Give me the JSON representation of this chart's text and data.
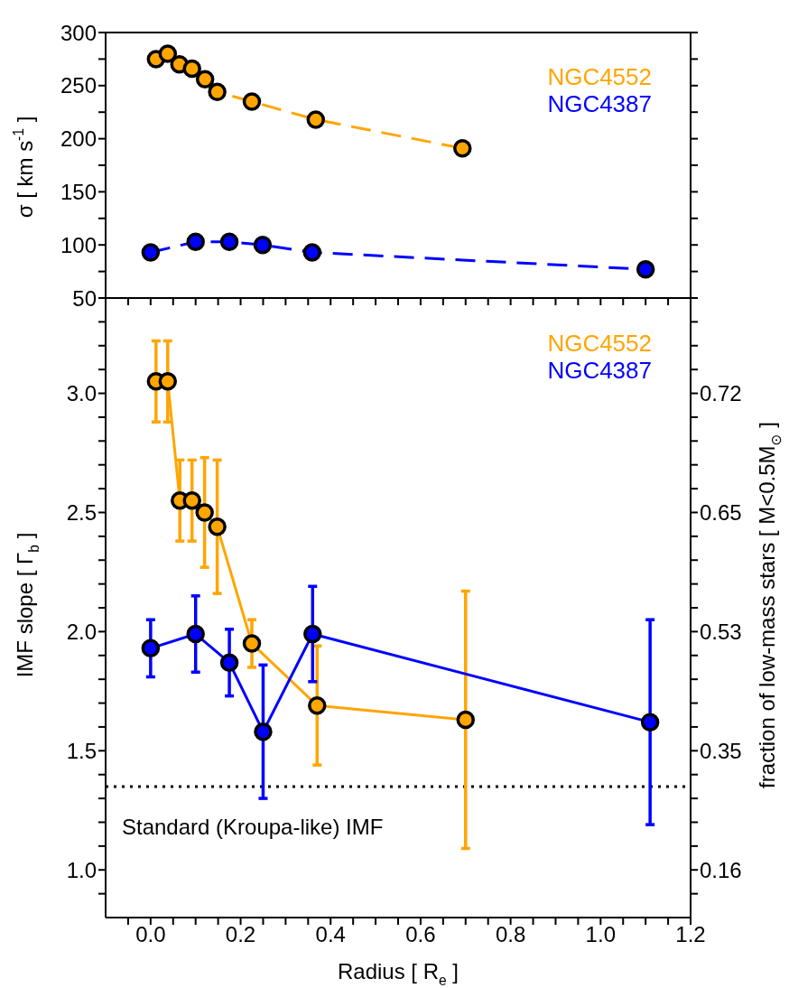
{
  "chart_data": [
    {
      "type": "line",
      "ylabel": "σ [ km s$^{-1}$ ]",
      "xlim": [
        -0.1,
        1.2
      ],
      "xticks": [
        -0.05,
        0,
        0.05,
        0.1,
        0.15,
        0.2,
        0.25,
        0.3,
        0.35,
        0.4,
        0.45,
        0.5,
        0.55,
        0.6,
        0.65,
        0.7,
        0.75,
        0.8,
        0.85,
        0.9,
        0.95,
        1.0,
        1.05,
        1.1,
        1.15,
        1.2
      ],
      "ylim": [
        50,
        300
      ],
      "yticks": [
        50,
        {
          "value": 75,
          "label": null
        },
        100,
        {
          "value": 125,
          "label": null
        },
        150,
        {
          "value": 175,
          "label": null
        },
        200,
        {
          "value": 225,
          "label": null
        },
        250,
        {
          "value": 275,
          "label": null
        },
        300
      ],
      "tick_labels": "y",
      "legend": "top right",
      "marker": "circle",
      "line_style": "dashed",
      "series": [
        {
          "name": "NGC4552",
          "color": "#ffa500",
          "x": [
            0.012,
            0.038,
            0.064,
            0.092,
            0.121,
            0.148,
            0.225,
            0.367,
            0.693
          ],
          "values": [
            275,
            280,
            270,
            266,
            256,
            244,
            235,
            218,
            191
          ]
        },
        {
          "name": "NGC4387",
          "color": "#0000ff",
          "x": [
            0.0,
            0.1,
            0.175,
            0.249,
            0.359,
            1.1
          ],
          "values": [
            93,
            103,
            103,
            100,
            93,
            77
          ]
        }
      ]
    },
    {
      "type": "line",
      "xlabel": "Radius [ R$_{e}$ ]",
      "ylabel": "IMF slope [ Γ$_{b}$ ]",
      "y2label": "fraction of low-mass stars [ M<0.5M$_{⊙}$ ]",
      "xlim": [
        -0.1,
        1.2
      ],
      "xticks": [
        {
          "value": -0.05,
          "label": null
        },
        {
          "value": 0,
          "label": "0.0"
        },
        {
          "value": 0.05,
          "label": null
        },
        {
          "value": 0.1,
          "label": null
        },
        {
          "value": 0.15,
          "label": null
        },
        {
          "value": 0.2,
          "label": "0.2"
        },
        {
          "value": 0.25,
          "label": null
        },
        {
          "value": 0.3,
          "label": null
        },
        {
          "value": 0.35,
          "label": null
        },
        {
          "value": 0.4,
          "label": "0.4"
        },
        {
          "value": 0.45,
          "label": null
        },
        {
          "value": 0.5,
          "label": null
        },
        {
          "value": 0.55,
          "label": null
        },
        {
          "value": 0.6,
          "label": "0.6"
        },
        {
          "value": 0.65,
          "label": null
        },
        {
          "value": 0.7,
          "label": null
        },
        {
          "value": 0.75,
          "label": null
        },
        {
          "value": 0.8,
          "label": "0.8"
        },
        {
          "value": 0.85,
          "label": null
        },
        {
          "value": 0.9,
          "label": null
        },
        {
          "value": 0.95,
          "label": null
        },
        {
          "value": 1.0,
          "label": "1.0"
        },
        {
          "value": 1.05,
          "label": null
        },
        {
          "value": 1.1,
          "label": null
        },
        {
          "value": 1.15,
          "label": null
        },
        {
          "value": 1.2,
          "label": "1.2"
        }
      ],
      "ylim": [
        0.8,
        3.4
      ],
      "yticks": [
        {
          "value": 0.9,
          "label": null
        },
        {
          "value": 1.0,
          "label": "1.0"
        },
        {
          "value": 1.1,
          "label": null
        },
        {
          "value": 1.2,
          "label": null
        },
        {
          "value": 1.3,
          "label": null
        },
        {
          "value": 1.4,
          "label": null
        },
        1.5,
        {
          "value": 1.6,
          "label": null
        },
        {
          "value": 1.7,
          "label": null
        },
        {
          "value": 1.8,
          "label": null
        },
        {
          "value": 1.9,
          "label": null
        },
        {
          "value": 2.0,
          "label": "2.0"
        },
        {
          "value": 2.1,
          "label": null
        },
        {
          "value": 2.2,
          "label": null
        },
        {
          "value": 2.3,
          "label": null
        },
        {
          "value": 2.4,
          "label": null
        },
        2.5,
        {
          "value": 2.6,
          "label": null
        },
        {
          "value": 2.7,
          "label": null
        },
        {
          "value": 2.8,
          "label": null
        },
        {
          "value": 2.9,
          "label": null
        },
        {
          "value": 3.0,
          "label": "3.0"
        },
        {
          "value": 3.1,
          "label": null
        },
        {
          "value": 3.2,
          "label": null
        },
        {
          "value": 3.3,
          "label": null
        }
      ],
      "y2_categories": [
        "0.72",
        "0.65",
        "0.53",
        "0.35",
        "0.16"
      ],
      "legend": "top right",
      "marker": "circle",
      "line_style": "solid",
      "ref_lines": [
        {
          "axis": "y",
          "value": 1.35,
          "color": "#000000",
          "line_style": "dotted"
        }
      ],
      "annotations": [
        "Standard (Kroupa-like) IMF"
      ],
      "series": [
        {
          "name": "NGC4552",
          "color": "#ffa500",
          "x": [
            0.012,
            0.038,
            0.065,
            0.092,
            0.12,
            0.148,
            0.225,
            0.37,
            0.7
          ],
          "values": [
            3.05,
            3.05,
            2.55,
            2.55,
            2.5,
            2.44,
            1.95,
            1.69,
            1.63
          ],
          "errors": [
            0.17,
            0.17,
            0.17,
            0.17,
            0.23,
            0.28,
            0.1,
            0.25,
            0.54
          ]
        },
        {
          "name": "NGC4387",
          "color": "#0000ff",
          "x": [
            0.0,
            0.1,
            0.175,
            0.25,
            0.36,
            1.11
          ],
          "values": [
            1.93,
            1.99,
            1.87,
            1.58,
            1.99,
            1.62
          ],
          "errors": [
            0.12,
            0.16,
            0.14,
            0.28,
            0.2,
            0.43
          ]
        }
      ]
    }
  ]
}
